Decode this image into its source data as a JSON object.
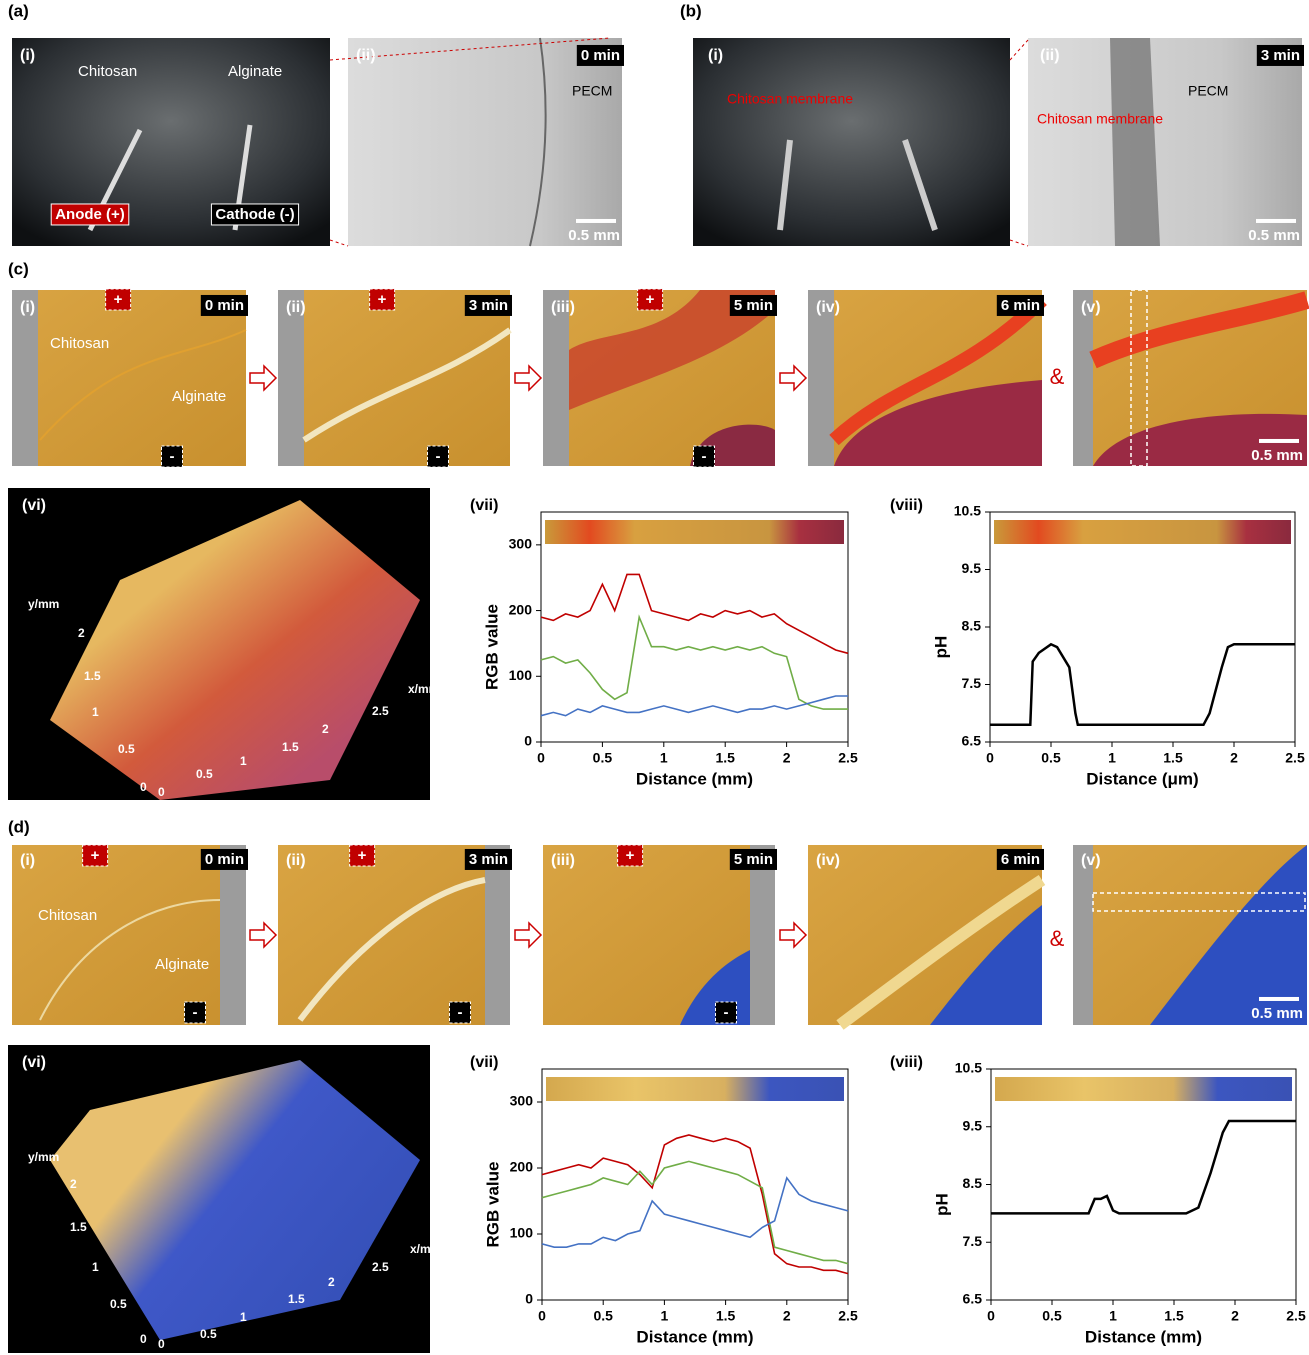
{
  "figure": {
    "panel_letters": [
      "(a)",
      "(b)",
      "(c)",
      "(d)"
    ],
    "photos": [
      {
        "texts": [
          "(i)",
          "Chitosan",
          "Alginate",
          "Anode (+)",
          "Cathode (-)"
        ]
      },
      {
        "texts": [
          "(ii)",
          "0 min",
          "PECM",
          "0.5 mm"
        ]
      },
      {
        "texts": [
          "(i)",
          "Chitosan membrane"
        ]
      },
      {
        "texts": [
          "(ii)",
          "3 min",
          "PECM",
          "Chitosan membrane",
          "0.5 mm"
        ]
      },
      {
        "texts": [
          "(i)",
          "+",
          "0 min",
          "Chitosan",
          "Alginate",
          "-"
        ]
      },
      {
        "texts": [
          "(ii)",
          "+",
          "3 min",
          "-"
        ]
      },
      {
        "texts": [
          "(iii)",
          "+",
          "5 min",
          "-"
        ]
      },
      {
        "texts": [
          "(iv)",
          "6 min"
        ]
      },
      {
        "texts": [
          "(v)",
          "0.5 mm"
        ]
      },
      {
        "texts": [
          "(vi)",
          "y/mm",
          "2",
          "1.5",
          "1",
          "0.5",
          "0",
          "0",
          "0.5",
          "1",
          "1.5",
          "2",
          "2.5",
          "x/mm"
        ]
      },
      {
        "texts": [
          "(i)",
          "+",
          "0 min",
          "Chitosan",
          "Alginate",
          "-"
        ]
      },
      {
        "texts": [
          "(ii)",
          "+",
          "3 min",
          "-"
        ]
      },
      {
        "texts": [
          "(iii)",
          "+",
          "5 min",
          "-"
        ]
      },
      {
        "texts": [
          "(iv)",
          "6 min"
        ]
      },
      {
        "texts": [
          "(v)",
          "0.5 mm"
        ]
      },
      {
        "texts": [
          "(vi)",
          "y/mm",
          "2",
          "1.5",
          "1",
          "0.5",
          "0",
          "0",
          "0.5",
          "1",
          "1.5",
          "2",
          "2.5",
          "x/mm"
        ]
      }
    ],
    "connectors": [
      "&",
      "&"
    ]
  },
  "chart_data": [
    {
      "type": "line",
      "panel": "(vii)",
      "xlabel": "Distance (mm)",
      "ylabel": "RGB value",
      "x": [
        0,
        0.1,
        0.2,
        0.3,
        0.4,
        0.5,
        0.6,
        0.7,
        0.8,
        0.9,
        1,
        1.1,
        1.2,
        1.3,
        1.4,
        1.5,
        1.6,
        1.7,
        1.8,
        1.9,
        2,
        2.1,
        2.2,
        2.3,
        2.4,
        2.5
      ],
      "series": [
        {
          "color": "#c00000",
          "values": [
            190,
            185,
            195,
            190,
            200,
            240,
            200,
            255,
            255,
            200,
            195,
            190,
            185,
            195,
            190,
            200,
            195,
            200,
            190,
            195,
            180,
            170,
            160,
            150,
            140,
            135
          ]
        },
        {
          "color": "#70ad47",
          "values": [
            125,
            130,
            120,
            125,
            105,
            80,
            65,
            75,
            190,
            145,
            145,
            140,
            145,
            140,
            145,
            140,
            145,
            140,
            145,
            135,
            130,
            65,
            55,
            50,
            50,
            50
          ]
        },
        {
          "color": "#4472c4",
          "values": [
            40,
            45,
            40,
            50,
            45,
            55,
            50,
            45,
            45,
            50,
            55,
            50,
            45,
            50,
            55,
            50,
            45,
            50,
            50,
            55,
            50,
            55,
            60,
            65,
            70,
            70
          ]
        }
      ],
      "xlim": [
        0,
        2.5
      ],
      "ylim": [
        0,
        350
      ],
      "xticks": [
        0,
        0.5,
        1,
        1.5,
        2,
        2.5
      ],
      "yticks": [
        0,
        100,
        200,
        300
      ]
    },
    {
      "type": "line",
      "panel": "(viii)",
      "xlabel": "Distance (μm)",
      "ylabel": "pH",
      "x": [
        0,
        0.33,
        0.35,
        0.4,
        0.5,
        0.55,
        0.65,
        0.7,
        0.72,
        1.75,
        1.8,
        1.9,
        1.95,
        2,
        2.5
      ],
      "series": [
        {
          "color": "#000000",
          "values": [
            6.8,
            6.8,
            7.9,
            8.05,
            8.2,
            8.15,
            7.8,
            7.0,
            6.8,
            6.8,
            7.0,
            7.8,
            8.15,
            8.2,
            8.2
          ]
        }
      ],
      "xlim": [
        0,
        2.5
      ],
      "ylim": [
        6.5,
        10.5
      ],
      "xticks": [
        0,
        0.5,
        1,
        1.5,
        2,
        2.5
      ],
      "yticks": [
        6.5,
        7.5,
        8.5,
        9.5,
        10.5
      ]
    },
    {
      "type": "line",
      "panel": "(vii)",
      "xlabel": "Distance (mm)",
      "ylabel": "RGB value",
      "x": [
        0,
        0.1,
        0.2,
        0.3,
        0.4,
        0.5,
        0.6,
        0.7,
        0.8,
        0.9,
        1,
        1.1,
        1.2,
        1.3,
        1.4,
        1.5,
        1.6,
        1.7,
        1.8,
        1.9,
        2,
        2.1,
        2.2,
        2.3,
        2.4,
        2.5
      ],
      "series": [
        {
          "color": "#c00000",
          "values": [
            190,
            195,
            200,
            205,
            200,
            215,
            210,
            205,
            190,
            170,
            235,
            245,
            250,
            245,
            240,
            245,
            240,
            230,
            160,
            70,
            55,
            50,
            50,
            45,
            45,
            40
          ]
        },
        {
          "color": "#70ad47",
          "values": [
            155,
            160,
            165,
            170,
            175,
            185,
            180,
            175,
            195,
            175,
            200,
            205,
            210,
            205,
            200,
            195,
            190,
            180,
            170,
            80,
            75,
            70,
            65,
            60,
            60,
            55
          ]
        },
        {
          "color": "#4472c4",
          "values": [
            85,
            80,
            80,
            85,
            85,
            95,
            90,
            100,
            105,
            150,
            130,
            125,
            120,
            115,
            110,
            105,
            100,
            95,
            110,
            120,
            185,
            160,
            150,
            145,
            140,
            135
          ]
        }
      ],
      "xlim": [
        0,
        2.5
      ],
      "ylim": [
        0,
        350
      ],
      "xticks": [
        0,
        0.5,
        1,
        1.5,
        2,
        2.5
      ],
      "yticks": [
        0,
        100,
        200,
        300
      ]
    },
    {
      "type": "line",
      "panel": "(viii)",
      "xlabel": "Distance (mm)",
      "ylabel": "pH",
      "x": [
        0,
        0.8,
        0.85,
        0.9,
        0.95,
        1.0,
        1.05,
        1.6,
        1.7,
        1.8,
        1.9,
        1.95,
        2.5
      ],
      "series": [
        {
          "color": "#000000",
          "values": [
            8,
            8,
            8.25,
            8.25,
            8.3,
            8.05,
            8.0,
            8.0,
            8.1,
            8.7,
            9.4,
            9.6,
            9.6
          ]
        }
      ],
      "xlim": [
        0,
        2.5
      ],
      "ylim": [
        6.5,
        10.5
      ],
      "xticks": [
        0,
        0.5,
        1,
        1.5,
        2,
        2.5
      ],
      "yticks": [
        6.5,
        7.5,
        8.5,
        9.5,
        10.5
      ]
    }
  ]
}
